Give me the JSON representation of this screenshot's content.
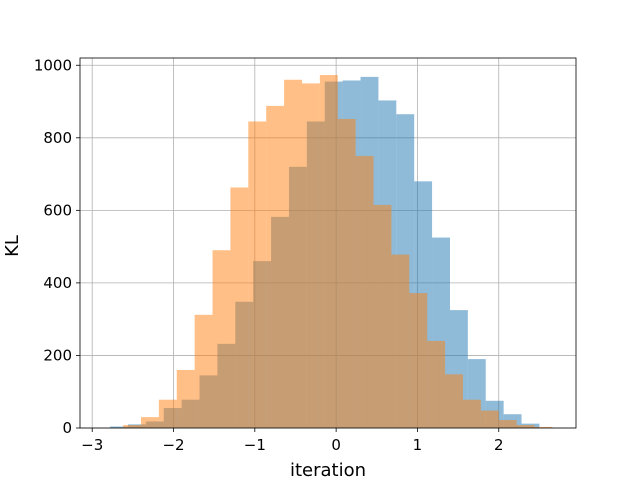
{
  "chart_data": {
    "type": "histogram",
    "title": "",
    "xlabel": "iteration",
    "ylabel": "KL",
    "xlim": [
      -3.15,
      2.95
    ],
    "ylim": [
      0,
      1020
    ],
    "xticks": [
      -3,
      -2,
      -1,
      0,
      1,
      2
    ],
    "xtick_labels": [
      "−3",
      "−2",
      "−1",
      "0",
      "1",
      "2"
    ],
    "yticks": [
      0,
      200,
      400,
      600,
      800,
      1000
    ],
    "ytick_labels": [
      "0",
      "200",
      "400",
      "600",
      "800",
      "1000"
    ],
    "grid": true,
    "legend": "none",
    "series": [
      {
        "color": "#1f77b4",
        "alpha": 0.5,
        "bins": [
          {
            "x0": -2.78,
            "x1": -2.56,
            "count": 4
          },
          {
            "x0": -2.56,
            "x1": -2.34,
            "count": 10
          },
          {
            "x0": -2.34,
            "x1": -2.12,
            "count": 18
          },
          {
            "x0": -2.12,
            "x1": -1.9,
            "count": 55
          },
          {
            "x0": -1.9,
            "x1": -1.68,
            "count": 78
          },
          {
            "x0": -1.68,
            "x1": -1.46,
            "count": 145
          },
          {
            "x0": -1.46,
            "x1": -1.24,
            "count": 232
          },
          {
            "x0": -1.24,
            "x1": -1.02,
            "count": 348
          },
          {
            "x0": -1.02,
            "x1": -0.8,
            "count": 460
          },
          {
            "x0": -0.8,
            "x1": -0.58,
            "count": 582
          },
          {
            "x0": -0.58,
            "x1": -0.36,
            "count": 720
          },
          {
            "x0": -0.36,
            "x1": -0.14,
            "count": 845
          },
          {
            "x0": -0.14,
            "x1": 0.08,
            "count": 955
          },
          {
            "x0": 0.08,
            "x1": 0.3,
            "count": 958
          },
          {
            "x0": 0.3,
            "x1": 0.52,
            "count": 968
          },
          {
            "x0": 0.52,
            "x1": 0.74,
            "count": 903
          },
          {
            "x0": 0.74,
            "x1": 0.96,
            "count": 865
          },
          {
            "x0": 0.96,
            "x1": 1.18,
            "count": 680
          },
          {
            "x0": 1.18,
            "x1": 1.4,
            "count": 525
          },
          {
            "x0": 1.4,
            "x1": 1.62,
            "count": 325
          },
          {
            "x0": 1.62,
            "x1": 1.84,
            "count": 190
          },
          {
            "x0": 1.84,
            "x1": 2.06,
            "count": 75
          },
          {
            "x0": 2.06,
            "x1": 2.28,
            "count": 38
          },
          {
            "x0": 2.28,
            "x1": 2.5,
            "count": 12
          }
        ]
      },
      {
        "color": "#ff7f0e",
        "alpha": 0.5,
        "bins": [
          {
            "x0": -2.62,
            "x1": -2.4,
            "count": 8
          },
          {
            "x0": -2.4,
            "x1": -2.18,
            "count": 30
          },
          {
            "x0": -2.18,
            "x1": -1.96,
            "count": 78
          },
          {
            "x0": -1.96,
            "x1": -1.74,
            "count": 160
          },
          {
            "x0": -1.74,
            "x1": -1.52,
            "count": 312
          },
          {
            "x0": -1.52,
            "x1": -1.3,
            "count": 490
          },
          {
            "x0": -1.3,
            "x1": -1.08,
            "count": 663
          },
          {
            "x0": -1.08,
            "x1": -0.86,
            "count": 845
          },
          {
            "x0": -0.86,
            "x1": -0.64,
            "count": 888
          },
          {
            "x0": -0.64,
            "x1": -0.42,
            "count": 960
          },
          {
            "x0": -0.42,
            "x1": -0.2,
            "count": 950
          },
          {
            "x0": -0.2,
            "x1": 0.02,
            "count": 973
          },
          {
            "x0": 0.02,
            "x1": 0.24,
            "count": 852
          },
          {
            "x0": 0.24,
            "x1": 0.46,
            "count": 750
          },
          {
            "x0": 0.46,
            "x1": 0.68,
            "count": 615
          },
          {
            "x0": 0.68,
            "x1": 0.9,
            "count": 478
          },
          {
            "x0": 0.9,
            "x1": 1.12,
            "count": 372
          },
          {
            "x0": 1.12,
            "x1": 1.34,
            "count": 240
          },
          {
            "x0": 1.34,
            "x1": 1.56,
            "count": 148
          },
          {
            "x0": 1.56,
            "x1": 1.78,
            "count": 78
          },
          {
            "x0": 1.78,
            "x1": 2.0,
            "count": 48
          },
          {
            "x0": 2.0,
            "x1": 2.22,
            "count": 22
          },
          {
            "x0": 2.22,
            "x1": 2.44,
            "count": 8
          },
          {
            "x0": 2.44,
            "x1": 2.66,
            "count": 3
          }
        ]
      }
    ]
  }
}
